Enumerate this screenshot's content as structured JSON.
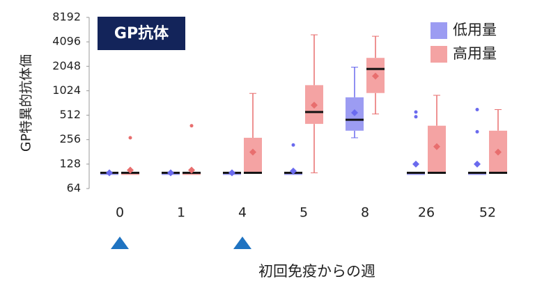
{
  "chart_data": {
    "type": "box",
    "title": "GP抗体",
    "y_label": "GP特異的抗体価",
    "x_label": "初回免疫からの週",
    "categories": [
      "0",
      "1",
      "4",
      "5",
      "8",
      "26",
      "52"
    ],
    "yscale": "log2",
    "ylim": [
      64,
      8192
    ],
    "yticks": [
      64,
      128,
      256,
      512,
      1024,
      2048,
      4096,
      8192
    ],
    "legend": "top-right",
    "series": [
      {
        "name": "低用量",
        "color": "#9c9cf2",
        "dark": "#6a6aee",
        "whisker_low": [
          100,
          100,
          100,
          100,
          270,
          100,
          100
        ],
        "q1": [
          100,
          100,
          100,
          100,
          330,
          100,
          100
        ],
        "median": [
          100,
          100,
          100,
          100,
          450,
          100,
          100
        ],
        "q3": [
          100,
          100,
          100,
          100,
          850,
          100,
          100
        ],
        "whisker_high": [
          100,
          100,
          100,
          100,
          2000,
          100,
          100
        ],
        "mean": [
          100,
          100,
          100,
          105,
          550,
          128,
          128
        ],
        "outliers": [
          [],
          [],
          [],
          [
            220
          ],
          [],
          [
            560,
            490
          ],
          [
            600,
            320
          ]
        ]
      },
      {
        "name": "高用量",
        "color": "#f4a3a3",
        "dark": "#e86e6e",
        "whisker_low": [
          100,
          100,
          100,
          100,
          530,
          100,
          100
        ],
        "q1": [
          100,
          100,
          100,
          400,
          960,
          100,
          100
        ],
        "median": [
          100,
          100,
          100,
          560,
          1900,
          100,
          100
        ],
        "q3": [
          100,
          100,
          270,
          1200,
          2600,
          380,
          330
        ],
        "whisker_high": [
          100,
          100,
          950,
          5000,
          4800,
          900,
          600
        ],
        "mean": [
          108,
          108,
          180,
          680,
          1550,
          210,
          180
        ],
        "outliers": [
          [
            270
          ],
          [
            380
          ],
          [],
          [],
          [],
          [],
          []
        ]
      }
    ]
  }
}
